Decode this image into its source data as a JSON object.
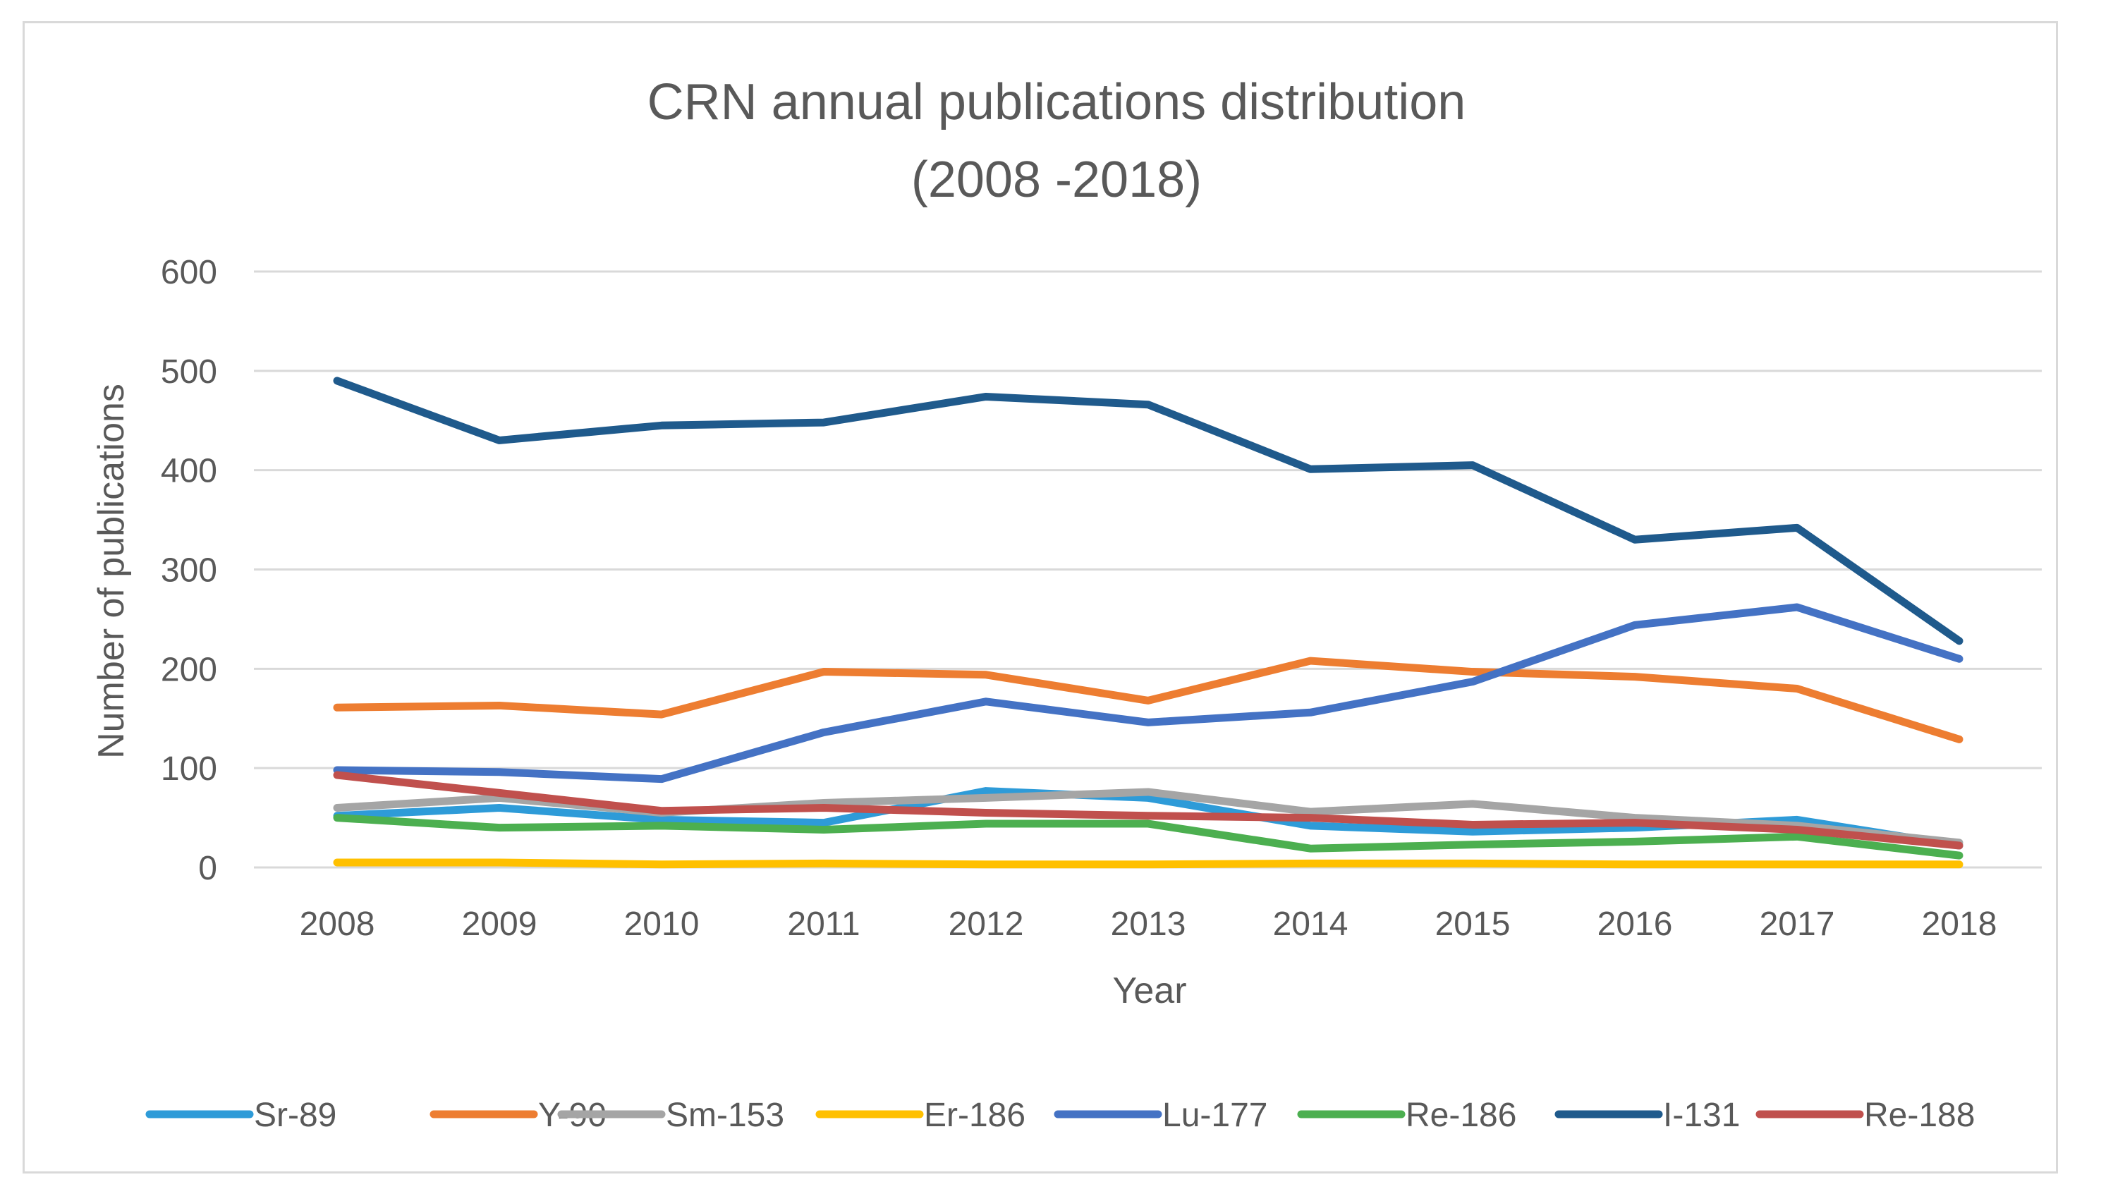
{
  "chart_data": {
    "type": "line",
    "title": "CRN annual publications distribution",
    "subtitle": "(2008 -2018)",
    "xlabel": "Year",
    "ylabel": "Number of publications",
    "ylim": [
      0,
      600
    ],
    "yticks": [
      "0",
      "100",
      "200",
      "300",
      "400",
      "500",
      "600"
    ],
    "categories": [
      "2008",
      "2009",
      "2010",
      "2011",
      "2012",
      "2013",
      "2014",
      "2015",
      "2016",
      "2017",
      "2018"
    ],
    "grid": "horizontal",
    "legend_position": "bottom",
    "series": [
      {
        "name": "Sr-89",
        "color": "#2e9bd8",
        "values": [
          52,
          60,
          48,
          45,
          77,
          70,
          42,
          36,
          40,
          48,
          22
        ]
      },
      {
        "name": "Y-90",
        "color": "#ed7d31",
        "values": [
          161,
          163,
          154,
          197,
          194,
          168,
          208,
          197,
          192,
          180,
          129
        ]
      },
      {
        "name": "Sm-153",
        "color": "#a5a5a5",
        "values": [
          60,
          70,
          55,
          65,
          70,
          76,
          56,
          64,
          50,
          42,
          25
        ]
      },
      {
        "name": "Er-186",
        "color": "#ffc000",
        "values": [
          5,
          5,
          3,
          4,
          3,
          3,
          4,
          4,
          3,
          3,
          3
        ]
      },
      {
        "name": "Lu-177",
        "color": "#4472c4",
        "values": [
          98,
          96,
          89,
          136,
          167,
          146,
          156,
          187,
          244,
          262,
          210
        ]
      },
      {
        "name": "Re-186",
        "color": "#4caf50",
        "values": [
          50,
          40,
          42,
          38,
          44,
          44,
          19,
          23,
          26,
          31,
          12
        ]
      },
      {
        "name": "I-131",
        "color": "#1f5a8c",
        "values": [
          490,
          430,
          445,
          448,
          474,
          466,
          401,
          405,
          330,
          342,
          228
        ]
      },
      {
        "name": "Re-188",
        "color": "#c0504d",
        "values": [
          93,
          75,
          57,
          60,
          55,
          52,
          50,
          43,
          45,
          38,
          22
        ]
      }
    ]
  }
}
